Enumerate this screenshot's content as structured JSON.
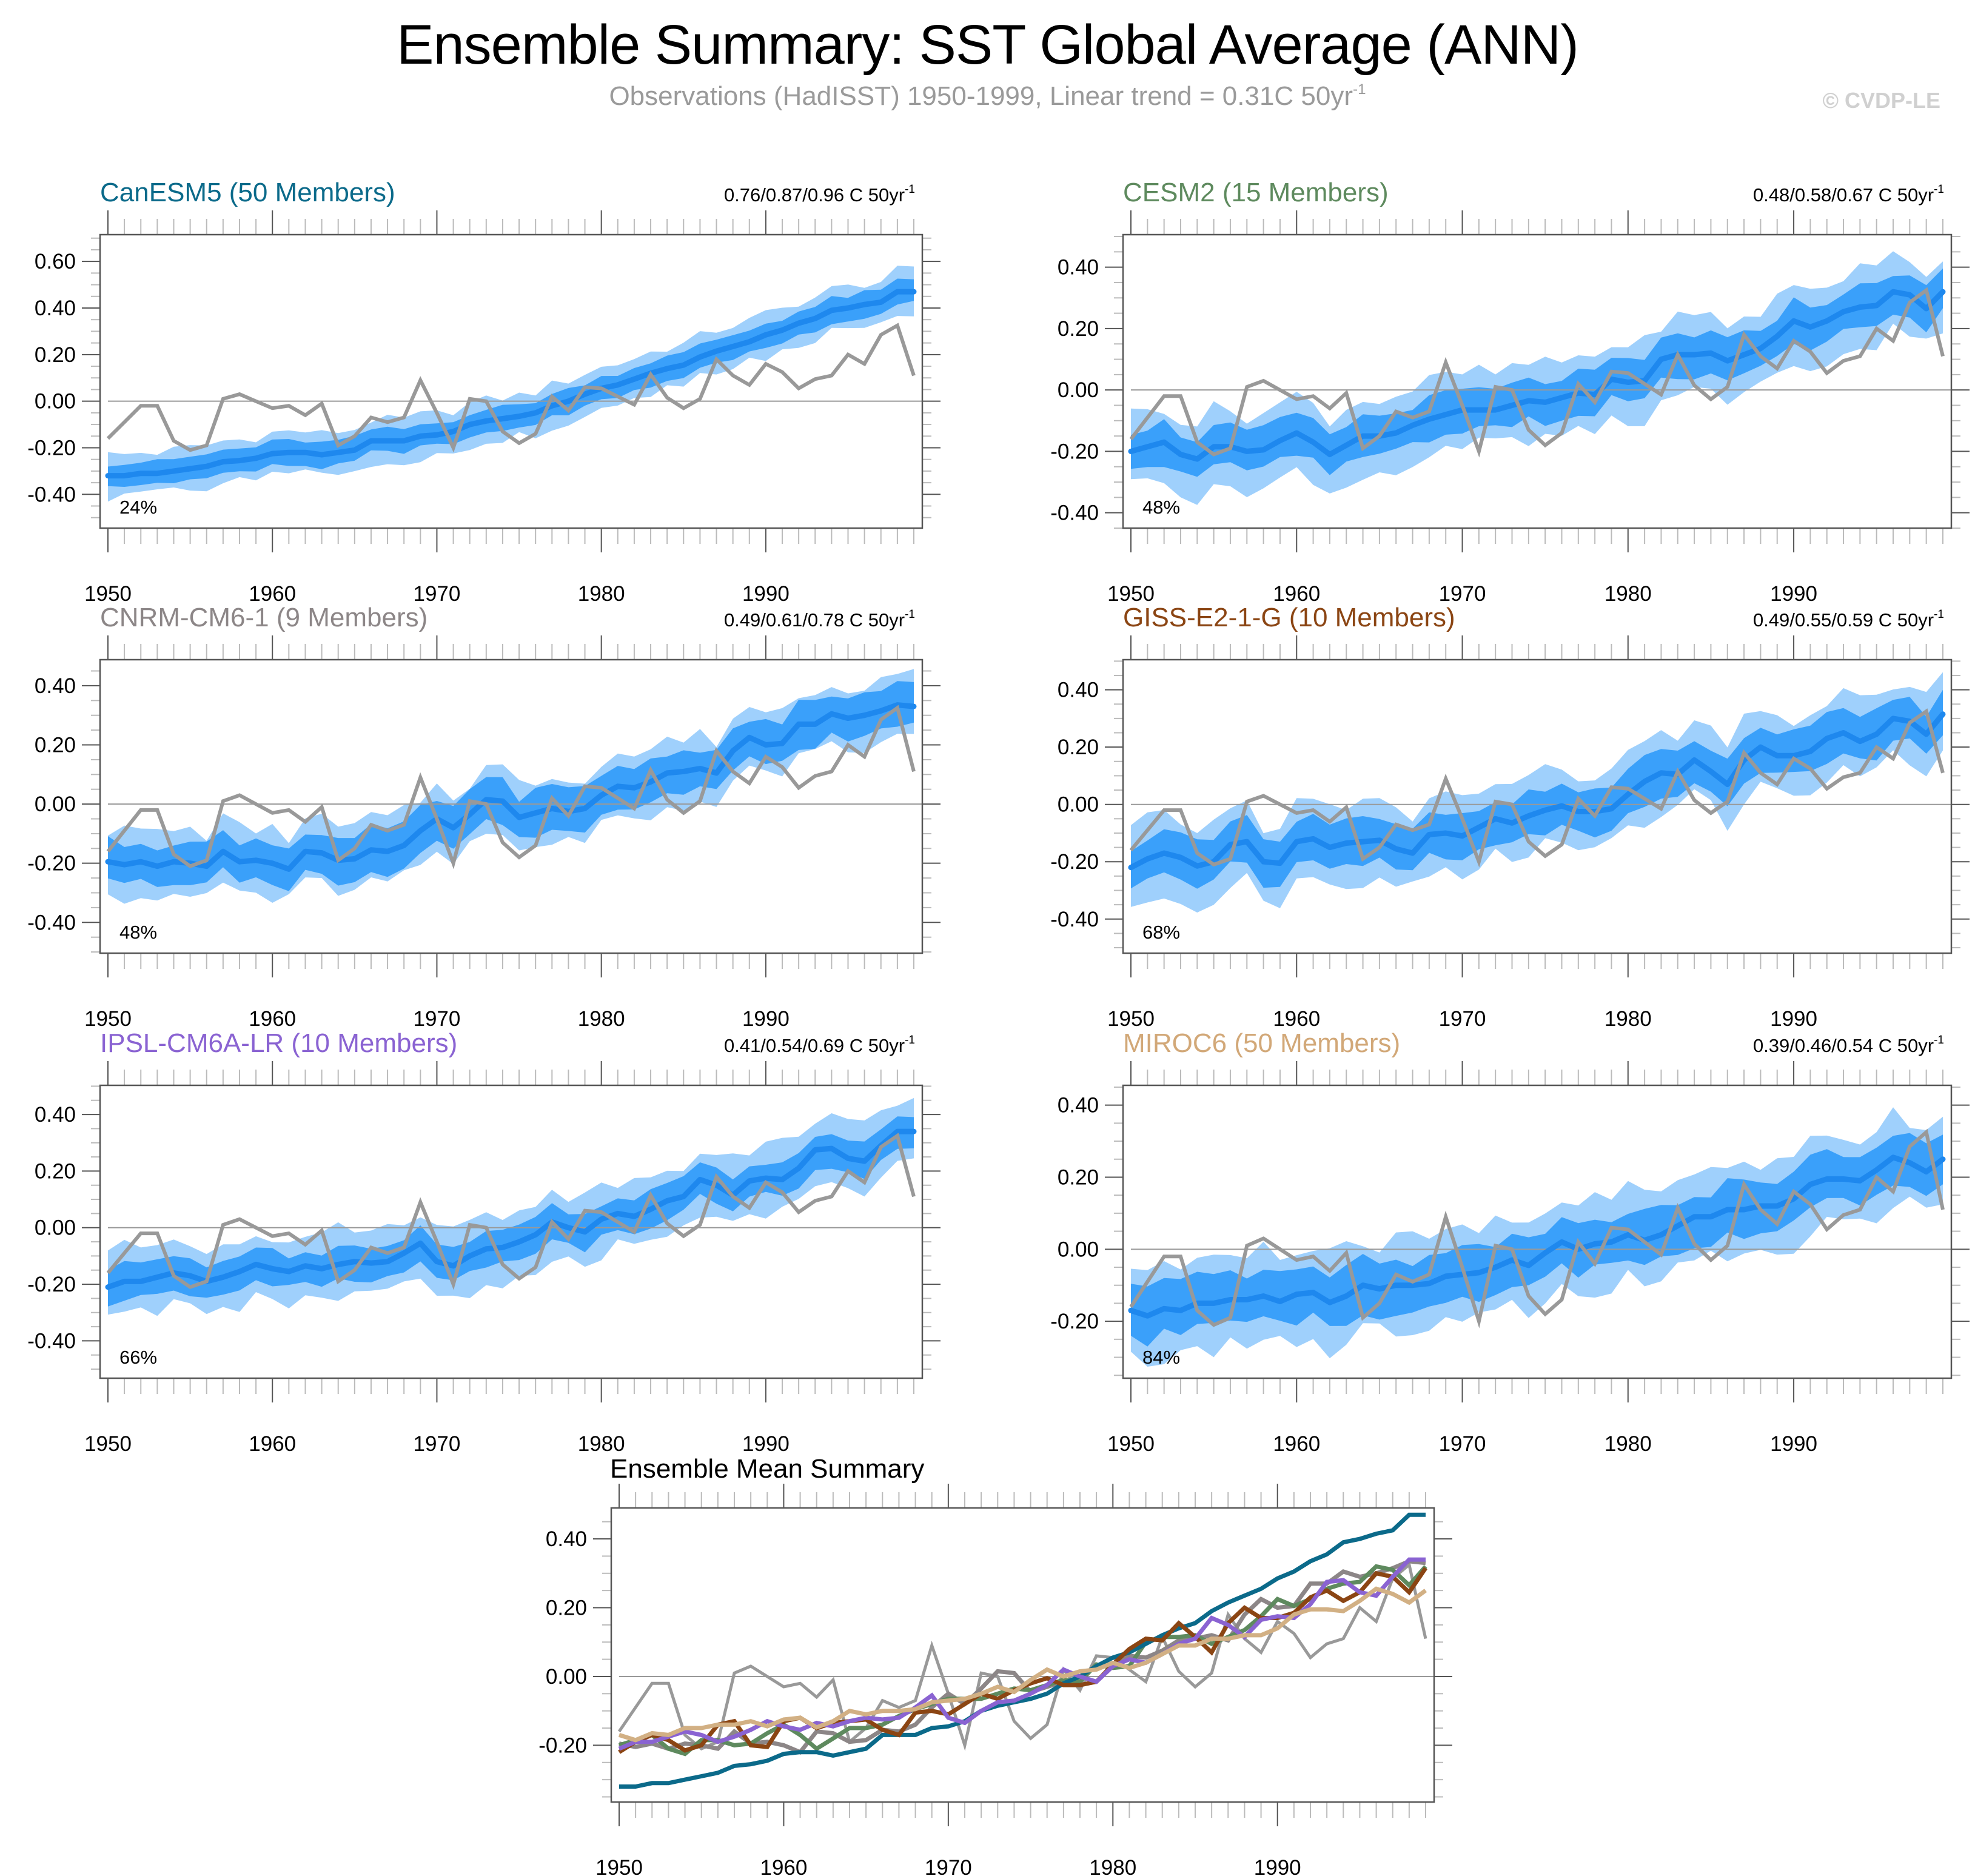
{
  "header": {
    "title": "Ensemble Summary: SST Global Average (ANN)",
    "subtitle_main": "Observations (HadISST) 1950-1999, Linear trend = 0.31C 50yr",
    "subtitle_sup": "-1",
    "copyright": "© CVDP-LE"
  },
  "colors": {
    "band_light": "#9fd0fc",
    "band_dark": "#3aa0fa",
    "mean_line": "#1e88ee",
    "observations": "#999999",
    "zero_line": "#999999",
    "frame": "#555555"
  },
  "chart_data": {
    "type": "line",
    "x": [
      1950,
      1951,
      1952,
      1953,
      1954,
      1955,
      1956,
      1957,
      1958,
      1959,
      1960,
      1961,
      1962,
      1963,
      1964,
      1965,
      1966,
      1967,
      1968,
      1969,
      1970,
      1971,
      1972,
      1973,
      1974,
      1975,
      1976,
      1977,
      1978,
      1979,
      1980,
      1981,
      1982,
      1983,
      1984,
      1985,
      1986,
      1987,
      1988,
      1989,
      1990,
      1991,
      1992,
      1993,
      1994,
      1995,
      1996,
      1997,
      1998,
      1999
    ],
    "xticks": [
      1950,
      1960,
      1970,
      1980,
      1990
    ],
    "xlabel": "",
    "ylabel": "",
    "units": "C",
    "observations": {
      "name": "HadISST",
      "values": [
        -0.16,
        -0.09,
        -0.02,
        -0.02,
        -0.17,
        -0.21,
        -0.19,
        0.01,
        0.03,
        0.0,
        -0.03,
        -0.02,
        -0.06,
        -0.01,
        -0.19,
        -0.15,
        -0.07,
        -0.09,
        -0.07,
        0.09,
        -0.05,
        -0.2,
        0.01,
        0.0,
        -0.13,
        -0.18,
        -0.14,
        0.02,
        -0.04,
        0.06,
        0.055,
        0.02,
        -0.015,
        0.115,
        0.015,
        -0.03,
        0.01,
        0.18,
        0.11,
        0.07,
        0.16,
        0.125,
        0.055,
        0.095,
        0.11,
        0.2,
        0.16,
        0.285,
        0.325,
        0.11
      ]
    },
    "panels": [
      {
        "id": "canesm5",
        "title": "CanESM5 (50 Members)",
        "title_color": "#0b6a8a",
        "trend_text": "0.76/0.87/0.96 C 50yr",
        "trend_sup": "-1",
        "percent": "24%",
        "ylim": [
          -0.545,
          0.715
        ],
        "yticks": [
          -0.4,
          -0.2,
          0.0,
          0.2,
          0.4,
          0.6
        ],
        "ytick_labels": [
          "-0.40",
          "-0.20",
          "0.00",
          "0.20",
          "0.40",
          "0.60"
        ],
        "mean": [
          -0.32,
          -0.32,
          -0.31,
          -0.31,
          -0.3,
          -0.29,
          -0.28,
          -0.26,
          -0.255,
          -0.245,
          -0.225,
          -0.22,
          -0.22,
          -0.23,
          -0.22,
          -0.21,
          -0.17,
          -0.17,
          -0.17,
          -0.15,
          -0.145,
          -0.13,
          -0.1,
          -0.085,
          -0.075,
          -0.065,
          -0.05,
          -0.02,
          0.0,
          0.03,
          0.055,
          0.07,
          0.095,
          0.12,
          0.14,
          0.155,
          0.19,
          0.215,
          0.235,
          0.255,
          0.285,
          0.305,
          0.335,
          0.355,
          0.39,
          0.4,
          0.415,
          0.425,
          0.47,
          0.47
        ],
        "dark_halfwidth": 0.05,
        "light_halfwidth": 0.09
      },
      {
        "id": "cesm2",
        "title": "CESM2 (15 Members)",
        "title_color": "#5e8a5e",
        "trend_text": "0.48/0.58/0.67 C 50yr",
        "trend_sup": "-1",
        "percent": "48%",
        "ylim": [
          -0.45,
          0.506
        ],
        "yticks": [
          -0.4,
          -0.2,
          0.0,
          0.2,
          0.4
        ],
        "ytick_labels": [
          "-0.40",
          "-0.20",
          "0.00",
          "0.20",
          "0.40"
        ],
        "mean": [
          -0.2,
          -0.185,
          -0.17,
          -0.21,
          -0.225,
          -0.185,
          -0.185,
          -0.2,
          -0.195,
          -0.165,
          -0.14,
          -0.17,
          -0.21,
          -0.18,
          -0.15,
          -0.15,
          -0.14,
          -0.115,
          -0.095,
          -0.08,
          -0.065,
          -0.065,
          -0.065,
          -0.05,
          -0.035,
          -0.04,
          -0.025,
          -0.01,
          -0.015,
          0.035,
          0.025,
          0.03,
          0.1,
          0.115,
          0.115,
          0.12,
          0.095,
          0.115,
          0.135,
          0.175,
          0.225,
          0.205,
          0.225,
          0.255,
          0.27,
          0.275,
          0.32,
          0.31,
          0.265,
          0.32
        ],
        "dark_halfwidth": 0.065,
        "light_halfwidth": 0.12
      },
      {
        "id": "cnrm-cm6-1",
        "title": "CNRM-CM6-1 (9 Members)",
        "title_color": "#8c8687",
        "trend_text": "0.49/0.61/0.78 C 50yr",
        "trend_sup": "-1",
        "percent": "48%",
        "ylim": [
          -0.504,
          0.488
        ],
        "yticks": [
          -0.4,
          -0.2,
          0.0,
          0.2,
          0.4
        ],
        "ytick_labels": [
          "-0.40",
          "-0.20",
          "0.00",
          "0.20",
          "0.40"
        ],
        "mean": [
          -0.195,
          -0.205,
          -0.195,
          -0.21,
          -0.195,
          -0.2,
          -0.21,
          -0.16,
          -0.195,
          -0.19,
          -0.2,
          -0.22,
          -0.16,
          -0.165,
          -0.19,
          -0.185,
          -0.155,
          -0.16,
          -0.14,
          -0.09,
          -0.05,
          -0.08,
          -0.035,
          0.015,
          0.01,
          -0.045,
          -0.03,
          -0.015,
          -0.025,
          -0.015,
          0.03,
          0.06,
          0.055,
          0.075,
          0.105,
          0.11,
          0.12,
          0.105,
          0.18,
          0.225,
          0.2,
          0.205,
          0.27,
          0.27,
          0.305,
          0.29,
          0.3,
          0.315,
          0.335,
          0.33
        ],
        "dark_halfwidth": 0.07,
        "light_halfwidth": 0.11
      },
      {
        "id": "giss-e2-1-g",
        "title": "GISS-E2-1-G (10 Members)",
        "title_color": "#8b4513",
        "trend_text": "0.49/0.55/0.59 C 50yr",
        "trend_sup": "-1",
        "percent": "68%",
        "ylim": [
          -0.519,
          0.505
        ],
        "yticks": [
          -0.4,
          -0.2,
          0.0,
          0.2,
          0.4
        ],
        "ytick_labels": [
          "-0.40",
          "-0.20",
          "0.00",
          "0.20",
          "0.40"
        ],
        "mean": [
          -0.22,
          -0.19,
          -0.17,
          -0.185,
          -0.215,
          -0.2,
          -0.14,
          -0.13,
          -0.2,
          -0.205,
          -0.13,
          -0.12,
          -0.15,
          -0.135,
          -0.13,
          -0.125,
          -0.155,
          -0.17,
          -0.105,
          -0.1,
          -0.11,
          -0.08,
          -0.05,
          -0.065,
          -0.04,
          -0.02,
          -0.005,
          -0.025,
          -0.025,
          -0.015,
          0.035,
          0.08,
          0.11,
          0.105,
          0.155,
          0.115,
          0.07,
          0.155,
          0.2,
          0.17,
          0.17,
          0.185,
          0.23,
          0.25,
          0.22,
          0.245,
          0.3,
          0.29,
          0.245,
          0.315
        ],
        "dark_halfwidth": 0.075,
        "light_halfwidth": 0.13
      },
      {
        "id": "ipsl-cm6a-lr",
        "title": "IPSL-CM6A-LR (10 Members)",
        "title_color": "#8a63d2",
        "trend_text": "0.41/0.54/0.69 C 50yr",
        "trend_sup": "-1",
        "percent": "66%",
        "ylim": [
          -0.532,
          0.503
        ],
        "yticks": [
          -0.4,
          -0.2,
          0.0,
          0.2,
          0.4
        ],
        "ytick_labels": [
          "-0.40",
          "-0.20",
          "0.00",
          "0.20",
          "0.40"
        ],
        "mean": [
          -0.21,
          -0.19,
          -0.19,
          -0.175,
          -0.16,
          -0.17,
          -0.19,
          -0.175,
          -0.155,
          -0.13,
          -0.145,
          -0.155,
          -0.135,
          -0.145,
          -0.13,
          -0.12,
          -0.125,
          -0.12,
          -0.09,
          -0.055,
          -0.12,
          -0.135,
          -0.1,
          -0.075,
          -0.07,
          -0.05,
          -0.025,
          0.02,
          0.0,
          -0.015,
          0.03,
          0.05,
          0.04,
          0.065,
          0.095,
          0.11,
          0.17,
          0.15,
          0.115,
          0.165,
          0.175,
          0.17,
          0.21,
          0.275,
          0.28,
          0.245,
          0.235,
          0.29,
          0.34,
          0.34
        ],
        "dark_halfwidth": 0.06,
        "light_halfwidth": 0.12
      },
      {
        "id": "miroc6",
        "title": "MIROC6 (50 Members)",
        "title_color": "#d2a878",
        "trend_text": "0.39/0.46/0.54 C 50yr",
        "trend_sup": "-1",
        "percent": "84%",
        "ylim": [
          -0.358,
          0.455
        ],
        "yticks": [
          -0.2,
          0.0,
          0.2,
          0.4
        ],
        "ytick_labels": [
          "-0.20",
          "0.00",
          "0.20",
          "0.40"
        ],
        "mean": [
          -0.17,
          -0.185,
          -0.165,
          -0.17,
          -0.15,
          -0.15,
          -0.14,
          -0.14,
          -0.13,
          -0.145,
          -0.125,
          -0.12,
          -0.148,
          -0.13,
          -0.1,
          -0.11,
          -0.1,
          -0.1,
          -0.095,
          -0.075,
          -0.07,
          -0.065,
          -0.05,
          -0.03,
          -0.045,
          -0.01,
          0.02,
          0.0,
          0.015,
          0.02,
          0.04,
          0.025,
          0.04,
          0.065,
          0.09,
          0.09,
          0.11,
          0.11,
          0.12,
          0.12,
          0.14,
          0.18,
          0.195,
          0.195,
          0.19,
          0.22,
          0.255,
          0.24,
          0.215,
          0.25
        ],
        "dark_halfwidth": 0.07,
        "light_halfwidth": 0.125
      }
    ],
    "summary": {
      "title": "Ensemble Mean Summary",
      "ylim": [
        -0.365,
        0.49
      ],
      "yticks": [
        -0.2,
        0.0,
        0.2,
        0.4
      ],
      "ytick_labels": [
        "-0.20",
        "0.00",
        "0.20",
        "0.40"
      ],
      "series": [
        {
          "name": "Observations (HadISST)",
          "source": "observations",
          "color": "#999999"
        },
        {
          "name": "CNRM-CM6-1",
          "source": "cnrm-cm6-1",
          "color": "#8c8687"
        },
        {
          "name": "CESM2",
          "source": "cesm2",
          "color": "#5e8a5e"
        },
        {
          "name": "CanESM5",
          "source": "canesm5",
          "color": "#0b6a8a"
        },
        {
          "name": "GISS-E2-1-G",
          "source": "giss-e2-1-g",
          "color": "#8b4513"
        },
        {
          "name": "IPSL-CM6A-LR",
          "source": "ipsl-cm6a-lr",
          "color": "#8a63d2"
        },
        {
          "name": "MIROC6",
          "source": "miroc6",
          "color": "#d2b084"
        }
      ]
    }
  }
}
